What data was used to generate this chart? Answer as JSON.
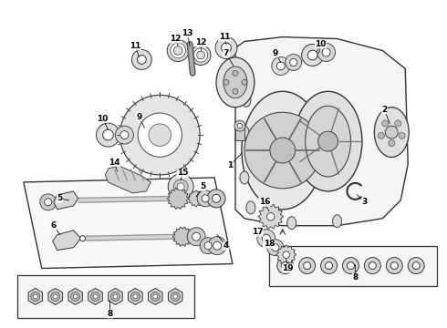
{
  "bg_color": "#ffffff",
  "fig_width": 4.9,
  "fig_height": 3.6,
  "dpi": 100,
  "lc": "#222222",
  "fc_light": "#eeeeee",
  "fc_mid": "#d8d8d8",
  "fc_dark": "#bbbbbb",
  "ec": "#333333"
}
